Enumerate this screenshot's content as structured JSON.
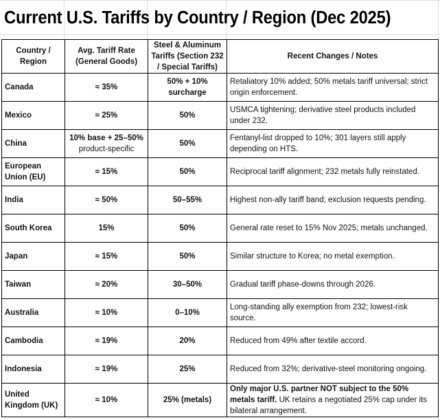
{
  "title": "Current U.S. Tariffs by Country / Region (Dec 2025)",
  "table": {
    "headers": [
      "Country / Region",
      "Avg. Tariff Rate (General Goods)",
      "Steel & Aluminum Tariffs (Section 232 / Special Tariffs)",
      "Recent Changes / Notes"
    ],
    "rows": [
      {
        "country": "Canada",
        "avg": "≈ 35%",
        "avg_sub": "",
        "steel": "50% + 10% surcharge",
        "notes_bold": "",
        "notes": "Retaliatory 10% added; 50% metals tariff universal; strict origin enforcement."
      },
      {
        "country": "Mexico",
        "avg": "≈ 25%",
        "avg_sub": "",
        "steel": "50%",
        "notes_bold": "",
        "notes": "USMCA tightening; derivative steel products included under 232."
      },
      {
        "country": "China",
        "avg": "10% base + 25–50%",
        "avg_sub": "product-specific",
        "steel": "50%",
        "notes_bold": "",
        "notes": "Fentanyl-list dropped to 10%; 301 layers still apply depending on HTS."
      },
      {
        "country": "European Union (EU)",
        "avg": "≈ 15%",
        "avg_sub": "",
        "steel": "50%",
        "notes_bold": "",
        "notes": "Reciprocal tariff alignment; 232 metals fully reinstated."
      },
      {
        "country": "India",
        "avg": "≈ 50%",
        "avg_sub": "",
        "steel": "50–55%",
        "notes_bold": "",
        "notes": "Highest non-ally tariff band; exclusion requests pending."
      },
      {
        "country": "South Korea",
        "avg": "15%",
        "avg_sub": "",
        "steel": "50%",
        "notes_bold": "",
        "notes": "General rate reset to 15% Nov 2025; metals unchanged."
      },
      {
        "country": "Japan",
        "avg": "≈ 15%",
        "avg_sub": "",
        "steel": "50%",
        "notes_bold": "",
        "notes": "Similar structure to Korea; no metal exemption."
      },
      {
        "country": "Taiwan",
        "avg": "≈ 20%",
        "avg_sub": "",
        "steel": "30–50%",
        "notes_bold": "",
        "notes": "Gradual tariff phase-downs through 2026."
      },
      {
        "country": "Australia",
        "avg": "≈ 10%",
        "avg_sub": "",
        "steel": "0–10%",
        "notes_bold": "",
        "notes": "Long-standing ally exemption from 232; lowest-risk source."
      },
      {
        "country": "Cambodia",
        "avg": "≈ 19%",
        "avg_sub": "",
        "steel": "20%",
        "notes_bold": "",
        "notes": "Reduced from 49% after textile accord."
      },
      {
        "country": "Indonesia",
        "avg": "≈ 19%",
        "avg_sub": "",
        "steel": "25%",
        "notes_bold": "",
        "notes": "Reduced from 32%; derivative-steel monitoring ongoing."
      },
      {
        "country": "United Kingdom (UK)",
        "avg": "≈ 10%",
        "avg_sub": "",
        "steel": "25% (metals)",
        "notes_bold": "Only major U.S. partner NOT subject to the 50% metals tariff.",
        "notes": " UK retains a negotiated 25% cap under its bilateral arrangement."
      }
    ]
  }
}
